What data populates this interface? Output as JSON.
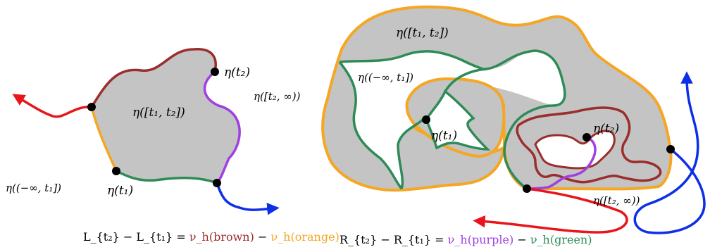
{
  "colors": {
    "brown": "#9b2d2d",
    "orange": "#f5a623",
    "purple": "#a040e0",
    "green": "#2e8b57",
    "red": "#e8161a",
    "blue": "#0d2fe8",
    "fill": "#c4c4c4"
  },
  "left_panel": {
    "label_eta_t2": "η(t₂)",
    "label_eta_t1t2": "η([t₁, t₂])",
    "label_eta_t2_inf": "η([t₂, ∞))",
    "label_eta_minf_t1": "η((−∞, t₁])",
    "label_eta_t1": "η(t₁)",
    "caption_prefix": "L_{t₂} − L_{t₁} = ",
    "caption_term1": "ν_h(brown)",
    "caption_minus": "−",
    "caption_term2": "ν_h(orange)"
  },
  "right_panel": {
    "label_eta_t1t2": "η([t₁, t₂])",
    "label_eta_minf_t1": "η((−∞, t₁])",
    "label_eta_t1": "η(t₁)",
    "label_eta_t2": "η(t₂)",
    "label_eta_t2_inf": "η([t₂, ∞))",
    "caption_prefix": "R_{t₂} − R_{t₁} =",
    "caption_term1": "ν_h(purple)",
    "caption_minus": "−",
    "caption_term2": "ν_h(green)"
  }
}
